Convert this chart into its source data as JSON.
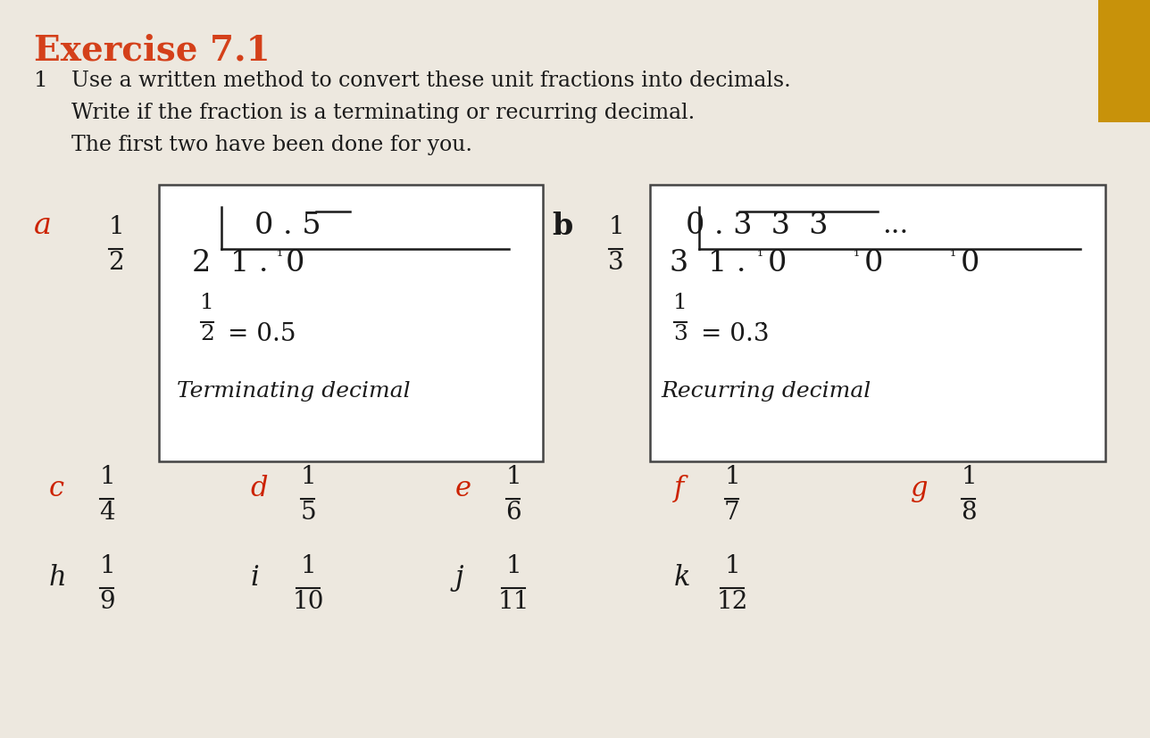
{
  "title": "Exercise 7.1",
  "title_color": "#d4401a",
  "title_fontsize": 28,
  "bg_color": "#ede8df",
  "accent_color": "#c8920a",
  "question_number": "1",
  "instruction_lines": [
    "Use a written method to convert these unit fractions into decimals.",
    "Write if the fraction is a terminating or recurring decimal.",
    "The first two have been done for you."
  ],
  "text_color": "#1a1a1a",
  "red_label_color": "#cc2200",
  "box_edge_color": "#444444",
  "font_size_body": 17,
  "font_size_box": 22,
  "font_size_label": 22,
  "bottom_row1": [
    {
      "label": "c",
      "num": "1",
      "den": "4",
      "lc": "#cc2200"
    },
    {
      "label": "d",
      "num": "1",
      "den": "5",
      "lc": "#cc2200"
    },
    {
      "label": "e",
      "num": "1",
      "den": "6",
      "lc": "#cc2200"
    },
    {
      "label": "f",
      "num": "1",
      "den": "7",
      "lc": "#cc2200"
    },
    {
      "label": "g",
      "num": "1",
      "den": "8",
      "lc": "#cc2200"
    }
  ],
  "bottom_row2": [
    {
      "label": "h",
      "num": "1",
      "den": "9",
      "lc": "#1a1a1a"
    },
    {
      "label": "i",
      "num": "1",
      "den": "10",
      "lc": "#1a1a1a"
    },
    {
      "label": "j",
      "num": "1",
      "den": "11",
      "lc": "#1a1a1a"
    },
    {
      "label": "k",
      "num": "1",
      "den": "12",
      "lc": "#1a1a1a"
    }
  ]
}
